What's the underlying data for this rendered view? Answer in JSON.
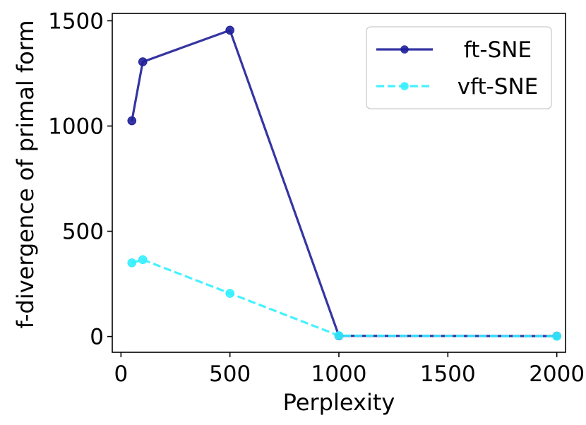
{
  "chart_data": {
    "type": "line",
    "title": "",
    "xlabel": "Perplexity",
    "ylabel": "f-divergence of primal form",
    "xlim": [
      -40,
      2040
    ],
    "ylim": [
      -75,
      1535
    ],
    "xticks": [
      0,
      500,
      1000,
      1500,
      2000
    ],
    "yticks": [
      0,
      500,
      1000,
      1500
    ],
    "grid": false,
    "legend_position": "top-right",
    "series": [
      {
        "name": "ft-SNE",
        "color": "#1f1f99",
        "line_style": "solid",
        "marker": "circle",
        "x": [
          50,
          100,
          500,
          1000,
          2000
        ],
        "y": [
          1025,
          1305,
          1455,
          3,
          2
        ]
      },
      {
        "name": "vft-SNE",
        "color": "#33f0ff",
        "line_style": "dashed",
        "marker": "circle",
        "x": [
          50,
          100,
          500,
          1000,
          2000
        ],
        "y": [
          350,
          365,
          205,
          4,
          1
        ]
      }
    ]
  }
}
